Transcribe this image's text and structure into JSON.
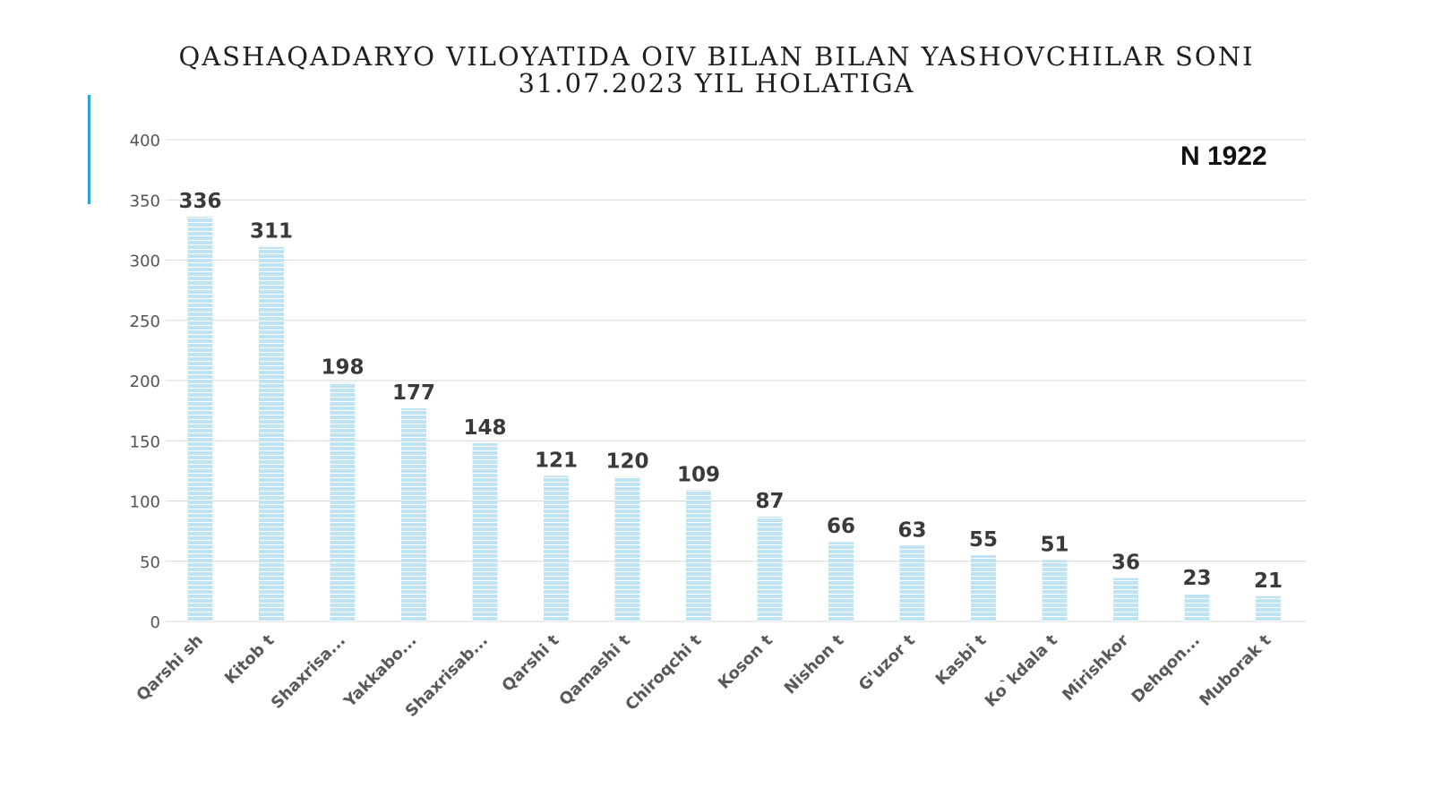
{
  "slide": {
    "title_line1": "QASHAQADARYO VILOYATIDA  OIV BILAN BILAN YASHOVCHILAR SONI",
    "title_line2": "31.07.2023 YIL HOLATIGA",
    "total_label": "N 1922"
  },
  "colors": {
    "bar": "#bfe3f3",
    "bar_stripe": "#ffffff",
    "accent": "#29a8d8",
    "grid": "#d9d9d9"
  },
  "chart_data": {
    "type": "bar",
    "title": "QASHAQADARYO VILOYATIDA  OIV BILAN BILAN YASHOVCHILAR SONI 31.07.2023 YIL HOLATIGA",
    "categories": [
      "Qarshi sh",
      "Kitob t",
      "Shaxrisa...",
      "Yakkabo...",
      "Shaxrisab...",
      "Qarshi t",
      "Qamashi t",
      "Chiroqchi t",
      "Koson t",
      "Nishon t",
      "G'uzor t",
      "Kasbi t",
      "Ko`kdala t",
      "Mirishkor",
      "Dehqon...",
      "Muborak t"
    ],
    "values": [
      336,
      311,
      198,
      177,
      148,
      121,
      120,
      109,
      87,
      66,
      63,
      55,
      51,
      36,
      23,
      21
    ],
    "yticks": [
      "0",
      "50",
      "100",
      "150",
      "200",
      "250",
      "300",
      "350",
      "400"
    ],
    "ylim": [
      0,
      400
    ],
    "grid": true,
    "data_labels": true,
    "legend": "none"
  }
}
